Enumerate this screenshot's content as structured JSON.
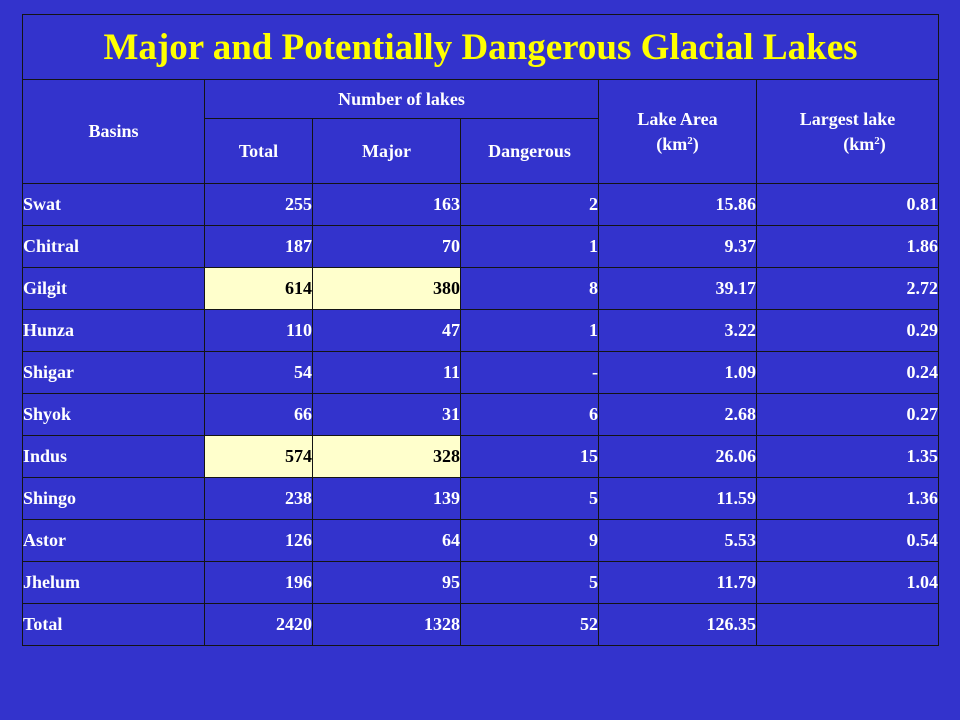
{
  "title": "Major and Potentially Dangerous Glacial Lakes",
  "headers": {
    "basins": "Basins",
    "number_of_lakes": "Number of lakes",
    "total": "Total",
    "major": "Major",
    "dangerous": "Dangerous",
    "lake_area": "Lake Area",
    "lake_area_unit": "(km",
    "largest_lake": "Largest lake",
    "largest_lake_unit": "(km",
    "unit_close": ")",
    "sup": "2"
  },
  "rows": [
    {
      "basin": "Swat",
      "total": "255",
      "major": "163",
      "dangerous": "2",
      "area": "15.86",
      "largest": "0.81",
      "highlight": false
    },
    {
      "basin": "Chitral",
      "total": "187",
      "major": "70",
      "dangerous": "1",
      "area": "9.37",
      "largest": "1.86",
      "highlight": false
    },
    {
      "basin": "Gilgit",
      "total": "614",
      "major": "380",
      "dangerous": "8",
      "area": "39.17",
      "largest": "2.72",
      "highlight": true
    },
    {
      "basin": "Hunza",
      "total": "110",
      "major": "47",
      "dangerous": "1",
      "area": "3.22",
      "largest": "0.29",
      "highlight": false
    },
    {
      "basin": "Shigar",
      "total": "54",
      "major": "11",
      "dangerous": "-",
      "area": "1.09",
      "largest": "0.24",
      "highlight": false
    },
    {
      "basin": "Shyok",
      "total": "66",
      "major": "31",
      "dangerous": "6",
      "area": "2.68",
      "largest": "0.27",
      "highlight": false
    },
    {
      "basin": "Indus",
      "total": "574",
      "major": "328",
      "dangerous": "15",
      "area": "26.06",
      "largest": "1.35",
      "highlight": true
    },
    {
      "basin": "Shingo",
      "total": "238",
      "major": "139",
      "dangerous": "5",
      "area": "11.59",
      "largest": "1.36",
      "highlight": false
    },
    {
      "basin": "Astor",
      "total": "126",
      "major": "64",
      "dangerous": "9",
      "area": "5.53",
      "largest": "0.54",
      "highlight": false
    },
    {
      "basin": "Jhelum",
      "total": "196",
      "major": "95",
      "dangerous": "5",
      "area": "11.79",
      "largest": "1.04",
      "highlight": false
    },
    {
      "basin": "Total",
      "total": "2420",
      "major": "1328",
      "dangerous": "52",
      "area": "126.35",
      "largest": "",
      "highlight": false
    }
  ],
  "colors": {
    "background": "#3333cc",
    "title": "#ffff00",
    "text": "#ffffff",
    "highlight_fill": "#ffffcc",
    "highlight_text": "#000000",
    "border": "#141414"
  }
}
